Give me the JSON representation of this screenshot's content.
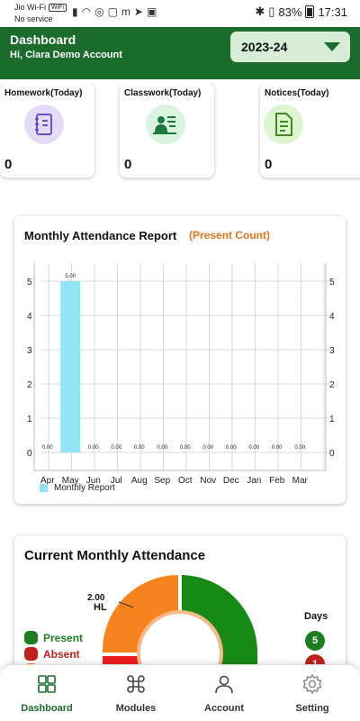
{
  "status_bar": {
    "carrier": "Jio Wi-Fi",
    "wifi_badge": "WiFi",
    "secondary": "No service",
    "battery": "83%",
    "time": "17:31"
  },
  "header": {
    "title": "Dashboard",
    "greeting": "Hi, Clara Demo Account",
    "year_selected": "2023-24"
  },
  "cards": [
    {
      "title": "Homework(Today)",
      "count": "0",
      "icon": "homework-book-icon",
      "color": "#e4dcf7",
      "icon_color": "#6b4fc8"
    },
    {
      "title": "Classwork(Today)",
      "count": "0",
      "icon": "classwork-teacher-icon",
      "color": "#d9f4e0",
      "icon_color": "#1b7a3a"
    },
    {
      "title": "Notices(Today)",
      "count": "0",
      "icon": "notice-document-icon",
      "color": "#dcf5cf",
      "icon_color": "#3e8a1f"
    }
  ],
  "attendance_chart": {
    "title": "Monthly Attendance Report",
    "subtitle": "(Present Count)",
    "legend": "Monthly Report",
    "bar_color": "#8fe4f7",
    "chart_data": {
      "type": "bar",
      "categories": [
        "Apr",
        "May",
        "Jun",
        "Jul",
        "Aug",
        "Sep",
        "Oct",
        "Nov",
        "Dec",
        "Jan",
        "Feb",
        "Mar"
      ],
      "series": [
        {
          "name": "Monthly Report",
          "values": [
            0,
            5,
            0,
            0,
            0,
            0,
            0,
            0,
            0,
            0,
            0,
            0
          ]
        }
      ],
      "data_labels": [
        "0.00",
        "5.00",
        "0.00",
        "0.00",
        "0.00",
        "0.00",
        "0.00",
        "0.00",
        "0.00",
        "0.00",
        "0.00",
        "0.00"
      ],
      "y_ticks": [
        "0",
        "1",
        "2",
        "3",
        "4",
        "5"
      ],
      "ylim": [
        0,
        5
      ],
      "grid": true,
      "legend_position": "bottom-left"
    }
  },
  "monthly_attendance": {
    "title": "Current Monthly Attendance",
    "hl_value": "2.00",
    "hl_label": "HL",
    "days_label": "Days",
    "legend": [
      {
        "label": "Present",
        "color": "#1e7d20"
      },
      {
        "label": "Absent",
        "color": "#c0211c"
      }
    ],
    "badges": [
      {
        "value": "5",
        "color": "#1e7d20"
      },
      {
        "value": "1",
        "color": "#c0211c"
      }
    ],
    "colors": {
      "present": "#178a16",
      "absent": "#ee1c1c",
      "hl": "#f5841f"
    }
  },
  "bottom_nav": [
    {
      "label": "Dashboard",
      "icon": "dashboard-grid-icon",
      "active": true
    },
    {
      "label": "Modules",
      "icon": "command-icon",
      "active": false
    },
    {
      "label": "Account",
      "icon": "user-icon",
      "active": false
    },
    {
      "label": "Setting",
      "icon": "gear-icon",
      "active": false
    }
  ]
}
